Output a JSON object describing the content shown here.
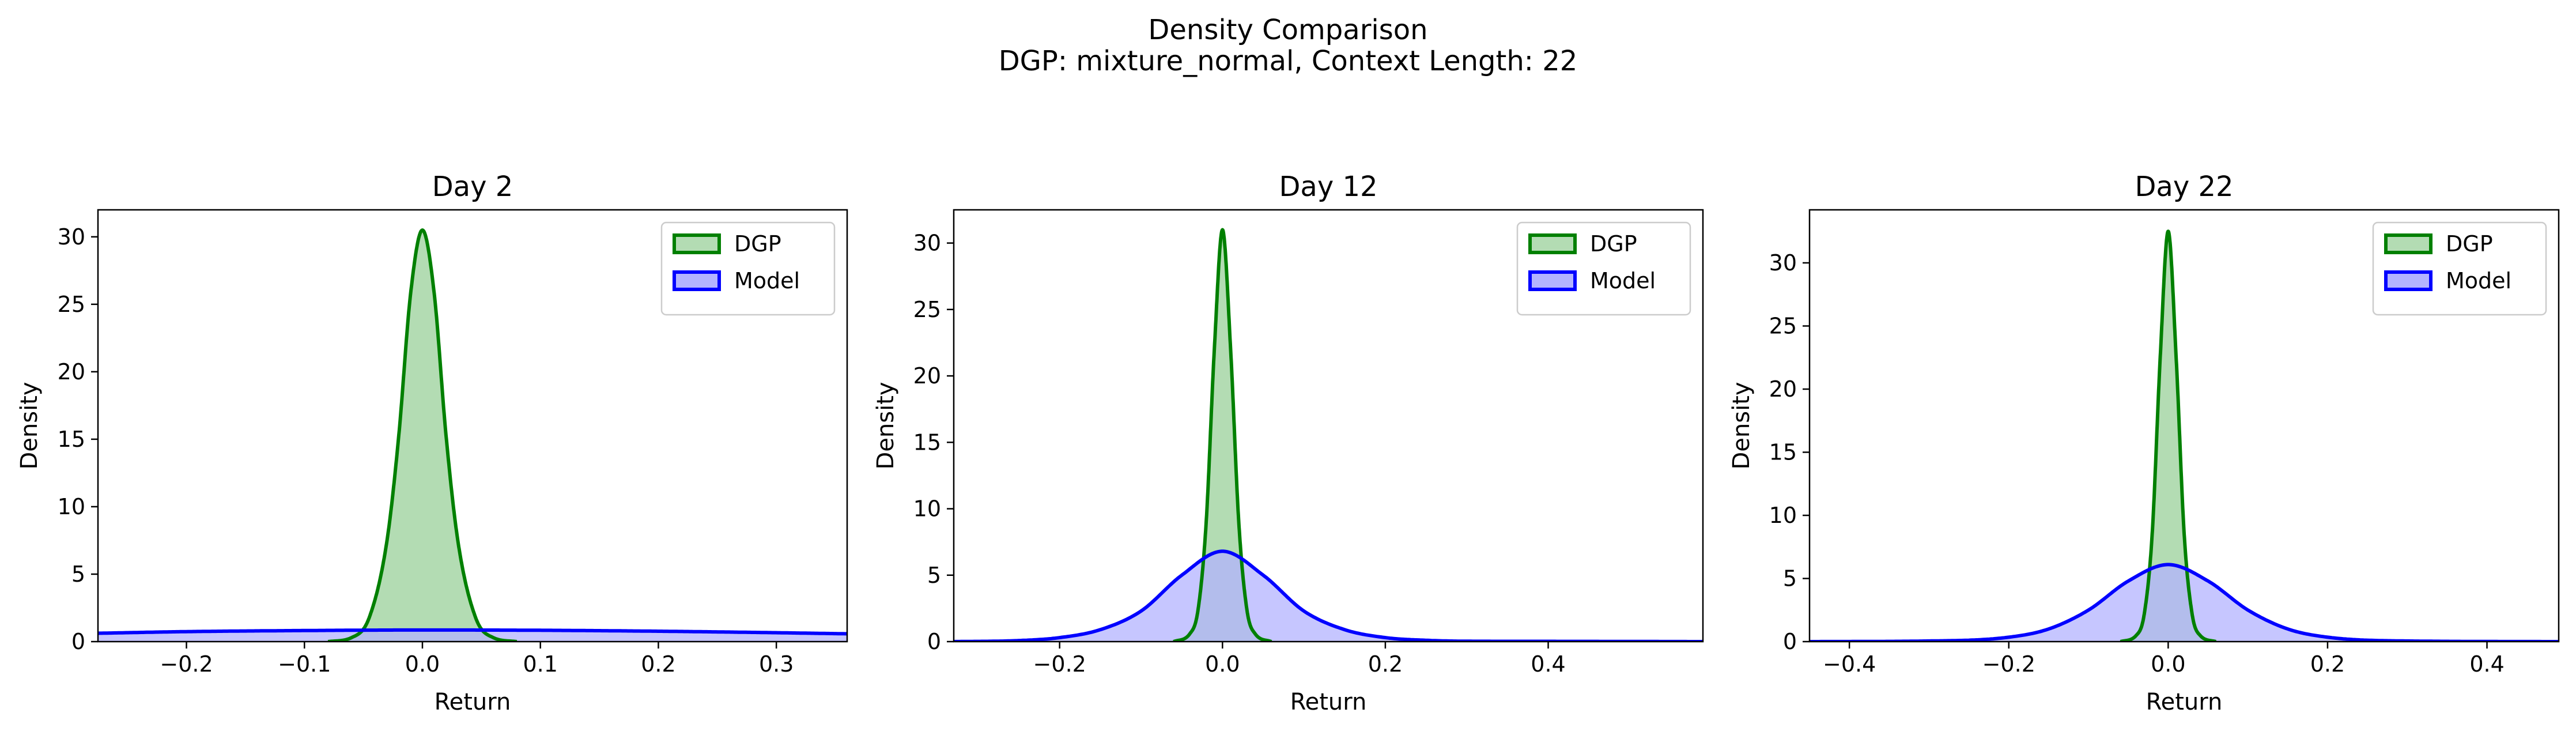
{
  "figure": {
    "suptitle_line1": "Density Comparison",
    "suptitle_line2": "DGP: mixture_normal, Context Length: 22"
  },
  "colors": {
    "dgp_line": "#008000",
    "dgp_fill": "#b3dcb3",
    "model_line": "#0000ff",
    "model_fill": "#b3b3ff",
    "overlap_fill": "#5a7f8c"
  },
  "chart_data": [
    {
      "type": "area",
      "title": "Day 2",
      "xlabel": "Return",
      "ylabel": "Density",
      "xlim": [
        -0.275,
        0.36
      ],
      "ylim": [
        0,
        32
      ],
      "xticks": [
        -0.2,
        -0.1,
        0.0,
        0.1,
        0.2,
        0.3
      ],
      "xtick_labels": [
        "−0.2",
        "−0.1",
        "0.0",
        "0.1",
        "0.2",
        "0.3"
      ],
      "yticks": [
        0,
        5,
        10,
        15,
        20,
        25,
        30
      ],
      "legend": "top-right",
      "grid": false,
      "series": [
        {
          "name": "DGP",
          "x": [
            -0.08,
            -0.06,
            -0.045,
            -0.03,
            -0.02,
            -0.01,
            0.0,
            0.01,
            0.02,
            0.03,
            0.045,
            0.06,
            0.08
          ],
          "y": [
            0.0,
            0.3,
            1.8,
            7.5,
            15.3,
            25.8,
            30.5,
            25.8,
            15.3,
            7.5,
            1.8,
            0.3,
            0.0
          ]
        },
        {
          "name": "Model",
          "x": [
            -0.275,
            -0.2,
            -0.1,
            0.0,
            0.1,
            0.2,
            0.3,
            0.36
          ],
          "y": [
            0.62,
            0.74,
            0.82,
            0.86,
            0.84,
            0.77,
            0.66,
            0.58
          ]
        }
      ]
    },
    {
      "type": "area",
      "title": "Day 12",
      "xlabel": "Return",
      "ylabel": "Density",
      "xlim": [
        -0.33,
        0.59
      ],
      "ylim": [
        0,
        32.5
      ],
      "xticks": [
        -0.2,
        0.0,
        0.2,
        0.4
      ],
      "xtick_labels": [
        "−0.2",
        "0.0",
        "0.2",
        "0.4"
      ],
      "yticks": [
        0,
        5,
        10,
        15,
        20,
        25,
        30
      ],
      "legend": "top-right",
      "grid": false,
      "series": [
        {
          "name": "DGP",
          "x": [
            -0.06,
            -0.04,
            -0.03,
            -0.02,
            -0.01,
            0.0,
            0.01,
            0.02,
            0.03,
            0.04,
            0.06
          ],
          "y": [
            0.0,
            0.6,
            2.4,
            9.0,
            22.0,
            31.0,
            22.0,
            9.0,
            2.4,
            0.6,
            0.0
          ]
        },
        {
          "name": "Model",
          "x": [
            -0.33,
            -0.25,
            -0.2,
            -0.15,
            -0.1,
            -0.05,
            0.0,
            0.05,
            0.1,
            0.15,
            0.2,
            0.25,
            0.3,
            0.4,
            0.59
          ],
          "y": [
            0.0,
            0.08,
            0.3,
            0.9,
            2.3,
            5.0,
            6.8,
            5.0,
            2.3,
            0.9,
            0.3,
            0.1,
            0.03,
            0.02,
            0.0
          ]
        }
      ]
    },
    {
      "type": "area",
      "title": "Day 22",
      "xlabel": "Return",
      "ylabel": "Density",
      "xlim": [
        -0.45,
        0.49
      ],
      "ylim": [
        0,
        34.2
      ],
      "xticks": [
        -0.4,
        -0.2,
        0.0,
        0.2,
        0.4
      ],
      "xtick_labels": [
        "−0.4",
        "−0.2",
        "0.0",
        "0.2",
        "0.4"
      ],
      "yticks": [
        0,
        5,
        10,
        15,
        20,
        25,
        30
      ],
      "legend": "top-right",
      "grid": false,
      "series": [
        {
          "name": "DGP",
          "x": [
            -0.06,
            -0.04,
            -0.03,
            -0.02,
            -0.01,
            0.0,
            0.01,
            0.02,
            0.03,
            0.04,
            0.06
          ],
          "y": [
            0.0,
            0.5,
            2.2,
            8.6,
            22.5,
            32.5,
            22.5,
            8.6,
            2.2,
            0.5,
            0.0
          ]
        },
        {
          "name": "Model",
          "x": [
            -0.45,
            -0.3,
            -0.2,
            -0.15,
            -0.1,
            -0.05,
            0.0,
            0.05,
            0.1,
            0.15,
            0.2,
            0.3,
            0.49
          ],
          "y": [
            0.0,
            0.05,
            0.35,
            1.0,
            2.5,
            4.8,
            6.1,
            4.8,
            2.5,
            1.0,
            0.35,
            0.05,
            0.0
          ]
        }
      ]
    }
  ]
}
